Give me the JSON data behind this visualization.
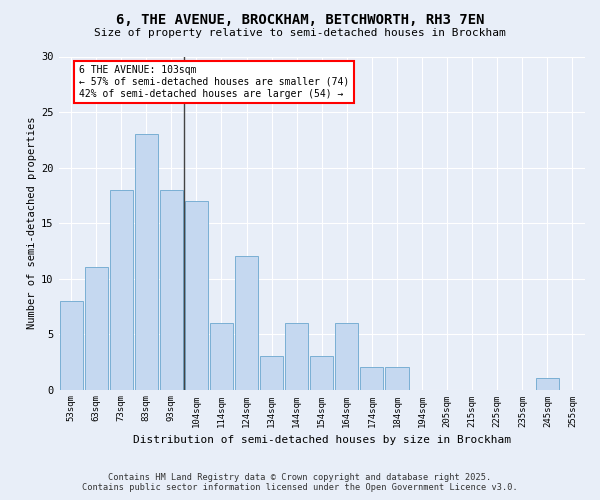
{
  "title1": "6, THE AVENUE, BROCKHAM, BETCHWORTH, RH3 7EN",
  "title2": "Size of property relative to semi-detached houses in Brockham",
  "xlabel": "Distribution of semi-detached houses by size in Brockham",
  "ylabel": "Number of semi-detached properties",
  "categories": [
    "53sqm",
    "63sqm",
    "73sqm",
    "83sqm",
    "93sqm",
    "104sqm",
    "114sqm",
    "124sqm",
    "134sqm",
    "144sqm",
    "154sqm",
    "164sqm",
    "174sqm",
    "184sqm",
    "194sqm",
    "205sqm",
    "215sqm",
    "225sqm",
    "235sqm",
    "245sqm",
    "255sqm"
  ],
  "values": [
    8,
    11,
    18,
    23,
    18,
    17,
    6,
    12,
    3,
    6,
    3,
    6,
    2,
    2,
    0,
    0,
    0,
    0,
    0,
    1,
    0
  ],
  "bar_color": "#c5d8f0",
  "bar_edge_color": "#7aafd4",
  "highlight_bar_index": 5,
  "annotation_title": "6 THE AVENUE: 103sqm",
  "annotation_line1": "← 57% of semi-detached houses are smaller (74)",
  "annotation_line2": "42% of semi-detached houses are larger (54) →",
  "ylim": [
    0,
    30
  ],
  "yticks": [
    0,
    5,
    10,
    15,
    20,
    25,
    30
  ],
  "footer1": "Contains HM Land Registry data © Crown copyright and database right 2025.",
  "footer2": "Contains public sector information licensed under the Open Government Licence v3.0.",
  "bg_color": "#e8eef8",
  "plot_bg_color": "#e8eef8"
}
